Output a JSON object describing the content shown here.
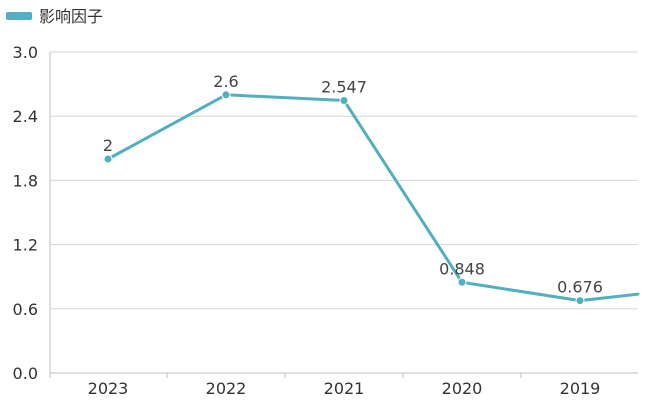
{
  "chart_data": {
    "type": "line",
    "categories": [
      "2023",
      "2022",
      "2021",
      "2020",
      "2019"
    ],
    "series": [
      {
        "name": "影响因子",
        "values": [
          2,
          2.6,
          2.547,
          0.848,
          0.676
        ],
        "labels": [
          "2",
          "2.6",
          "2.547",
          "0.848",
          "0.676"
        ],
        "color": "#52afbd"
      }
    ],
    "ylim": [
      0,
      3.0
    ],
    "yticks": [
      "0.0",
      "0.6",
      "1.2",
      "1.8",
      "2.4",
      "3.0"
    ],
    "continues_right_value": 0.8,
    "grid": true,
    "legend": "top-left"
  }
}
